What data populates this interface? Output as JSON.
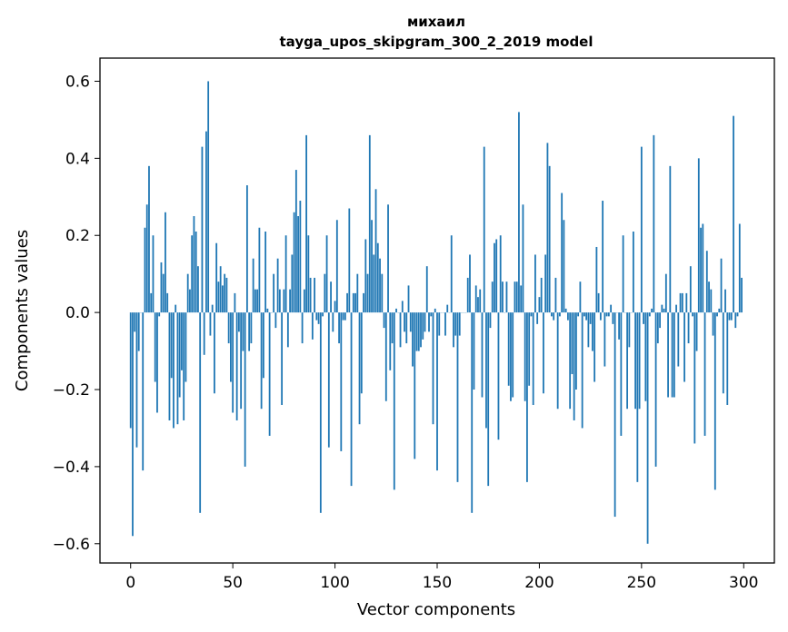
{
  "chart_data": {
    "type": "bar",
    "title": "михаил",
    "subtitle": "tayga_upos_skipgram_300_2_2019 model",
    "xlabel": "Vector components",
    "ylabel": "Components values",
    "xlim": [
      -15,
      315
    ],
    "ylim": [
      -0.65,
      0.66
    ],
    "xticks": [
      0,
      50,
      100,
      150,
      200,
      250,
      300
    ],
    "yticks": [
      -0.6,
      -0.4,
      -0.2,
      0.0,
      0.2,
      0.4,
      0.6
    ],
    "xtick_labels": [
      "0",
      "50",
      "100",
      "150",
      "200",
      "250",
      "300"
    ],
    "ytick_labels": [
      "−0.6",
      "−0.4",
      "−0.2",
      "0.0",
      "0.2",
      "0.4",
      "0.6"
    ],
    "grid": false,
    "bar_color": "#1f77b4",
    "values": [
      -0.3,
      -0.58,
      -0.05,
      -0.35,
      -0.1,
      0.0,
      -0.41,
      0.22,
      0.28,
      0.38,
      0.05,
      0.2,
      -0.18,
      -0.26,
      -0.01,
      0.13,
      0.1,
      0.26,
      0.05,
      -0.28,
      -0.17,
      -0.3,
      0.02,
      -0.29,
      -0.22,
      -0.15,
      -0.28,
      -0.18,
      0.1,
      0.06,
      0.2,
      0.25,
      0.21,
      0.12,
      -0.52,
      0.43,
      -0.11,
      0.47,
      0.6,
      -0.06,
      0.02,
      -0.21,
      0.18,
      0.08,
      0.12,
      0.07,
      0.1,
      0.09,
      -0.08,
      -0.18,
      -0.26,
      0.05,
      -0.28,
      -0.05,
      -0.25,
      -0.1,
      -0.4,
      0.33,
      -0.1,
      -0.08,
      0.14,
      0.06,
      0.06,
      0.22,
      -0.25,
      -0.17,
      0.21,
      0.01,
      -0.32,
      0.0,
      0.1,
      -0.04,
      0.14,
      0.06,
      -0.24,
      0.06,
      0.2,
      -0.09,
      0.06,
      0.15,
      0.26,
      0.37,
      0.25,
      0.29,
      -0.08,
      0.06,
      0.46,
      0.2,
      0.09,
      -0.07,
      0.09,
      -0.02,
      -0.03,
      -0.52,
      -0.01,
      0.1,
      0.2,
      -0.35,
      0.08,
      -0.05,
      0.03,
      0.24,
      -0.08,
      -0.36,
      -0.02,
      -0.02,
      0.05,
      0.27,
      -0.45,
      0.05,
      0.05,
      0.1,
      -0.29,
      -0.21,
      0.05,
      0.19,
      0.1,
      0.46,
      0.24,
      0.15,
      0.32,
      0.18,
      0.14,
      0.1,
      -0.04,
      -0.23,
      0.28,
      -0.15,
      -0.08,
      -0.46,
      0.01,
      0.0,
      -0.09,
      0.03,
      -0.05,
      -0.08,
      0.07,
      -0.05,
      -0.14,
      -0.38,
      -0.1,
      -0.1,
      -0.09,
      -0.07,
      -0.05,
      0.12,
      -0.05,
      -0.01,
      -0.29,
      0.01,
      -0.41,
      -0.06,
      0.0,
      0.0,
      -0.06,
      0.02,
      0.0,
      0.2,
      -0.09,
      -0.06,
      -0.44,
      -0.06,
      0.0,
      0.0,
      0.0,
      0.09,
      0.15,
      -0.52,
      -0.2,
      0.07,
      0.04,
      0.06,
      -0.22,
      0.43,
      -0.3,
      -0.45,
      -0.04,
      0.08,
      0.18,
      0.19,
      -0.33,
      0.2,
      0.08,
      0.0,
      0.08,
      -0.19,
      -0.23,
      -0.22,
      0.08,
      0.08,
      0.52,
      0.07,
      0.28,
      -0.23,
      -0.44,
      -0.19,
      -0.01,
      -0.24,
      0.15,
      -0.03,
      0.04,
      0.09,
      -0.21,
      0.15,
      0.44,
      0.38,
      -0.01,
      -0.02,
      0.09,
      -0.25,
      -0.01,
      0.31,
      0.24,
      0.01,
      -0.02,
      -0.25,
      -0.16,
      -0.28,
      -0.2,
      -0.01,
      0.08,
      -0.3,
      -0.01,
      -0.02,
      -0.09,
      -0.03,
      -0.1,
      -0.18,
      0.17,
      0.05,
      -0.02,
      0.29,
      -0.14,
      -0.01,
      -0.01,
      0.02,
      -0.03,
      -0.53,
      0.0,
      -0.07,
      -0.32,
      0.2,
      0.0,
      -0.25,
      -0.09,
      0.0,
      0.21,
      -0.25,
      -0.44,
      -0.25,
      0.43,
      -0.03,
      -0.23,
      -0.6,
      -0.01,
      0.01,
      0.46,
      -0.4,
      -0.08,
      -0.04,
      0.02,
      0.01,
      0.1,
      -0.22,
      0.38,
      -0.22,
      -0.22,
      0.02,
      -0.14,
      0.05,
      0.05,
      -0.18,
      0.05,
      -0.08,
      0.12,
      -0.01,
      -0.34,
      -0.1,
      0.4,
      0.22,
      0.23,
      -0.32,
      0.16,
      0.08,
      0.06,
      -0.06,
      -0.46,
      -0.01,
      0.01,
      0.14,
      -0.21,
      0.06,
      -0.24,
      -0.02,
      -0.02,
      0.51,
      -0.04,
      -0.01,
      0.23,
      0.09
    ]
  }
}
